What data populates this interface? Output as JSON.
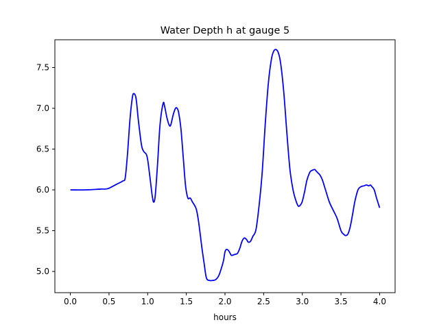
{
  "chart_data": {
    "type": "line",
    "title": "Water Depth h at gauge 5",
    "xlabel": "hours",
    "ylabel": "",
    "xlim": [
      -0.2,
      4.2
    ],
    "ylim": [
      4.74,
      7.84
    ],
    "xticks": [
      0.0,
      0.5,
      1.0,
      1.5,
      2.0,
      2.5,
      3.0,
      3.5,
      4.0
    ],
    "xtick_labels": [
      "0.0",
      "0.5",
      "1.0",
      "1.5",
      "2.0",
      "2.5",
      "3.0",
      "3.5",
      "4.0"
    ],
    "yticks": [
      5.0,
      5.5,
      6.0,
      6.5,
      7.0,
      7.5
    ],
    "ytick_labels": [
      "5.0",
      "5.5",
      "6.0",
      "6.5",
      "7.0",
      "7.5"
    ],
    "grid": false,
    "series": [
      {
        "color": "#0000ff",
        "x": [
          0.0,
          0.2,
          0.4,
          0.45,
          0.5,
          0.6,
          0.68,
          0.71,
          0.74,
          0.77,
          0.8,
          0.82,
          0.85,
          0.88,
          0.92,
          0.95,
          0.98,
          1.0,
          1.03,
          1.06,
          1.08,
          1.1,
          1.13,
          1.16,
          1.2,
          1.22,
          1.25,
          1.28,
          1.3,
          1.33,
          1.36,
          1.38,
          1.4,
          1.43,
          1.46,
          1.49,
          1.52,
          1.55,
          1.58,
          1.6,
          1.63,
          1.66,
          1.7,
          1.73,
          1.76,
          1.8,
          1.84,
          1.88,
          1.92,
          1.95,
          1.98,
          2.0,
          2.02,
          2.05,
          2.08,
          2.1,
          2.13,
          2.16,
          2.19,
          2.22,
          2.25,
          2.28,
          2.3,
          2.33,
          2.36,
          2.4,
          2.44,
          2.48,
          2.52,
          2.56,
          2.6,
          2.63,
          2.66,
          2.69,
          2.72,
          2.76,
          2.8,
          2.84,
          2.88,
          2.92,
          2.95,
          2.98,
          3.0,
          3.03,
          3.06,
          3.1,
          3.13,
          3.16,
          3.18,
          3.2,
          3.23,
          3.26,
          3.3,
          3.35,
          3.4,
          3.45,
          3.5,
          3.53,
          3.56,
          3.59,
          3.62,
          3.65,
          3.68,
          3.72,
          3.76,
          3.8,
          3.83,
          3.86,
          3.88,
          3.9,
          3.93,
          3.96,
          4.0
        ],
        "y": [
          6.0,
          6.0,
          6.01,
          6.01,
          6.02,
          6.07,
          6.11,
          6.15,
          6.45,
          6.85,
          7.12,
          7.18,
          7.12,
          6.85,
          6.55,
          6.47,
          6.44,
          6.37,
          6.15,
          5.92,
          5.85,
          5.95,
          6.35,
          6.8,
          7.06,
          7.02,
          6.88,
          6.79,
          6.8,
          6.92,
          7.0,
          7.0,
          6.95,
          6.75,
          6.4,
          6.05,
          5.9,
          5.9,
          5.85,
          5.82,
          5.76,
          5.6,
          5.3,
          5.1,
          4.92,
          4.89,
          4.89,
          4.9,
          4.95,
          5.03,
          5.13,
          5.24,
          5.27,
          5.25,
          5.2,
          5.2,
          5.21,
          5.22,
          5.28,
          5.37,
          5.41,
          5.39,
          5.36,
          5.37,
          5.43,
          5.51,
          5.8,
          6.2,
          6.8,
          7.3,
          7.6,
          7.7,
          7.72,
          7.68,
          7.55,
          7.2,
          6.7,
          6.25,
          6.0,
          5.86,
          5.8,
          5.82,
          5.86,
          5.98,
          6.12,
          6.22,
          6.24,
          6.25,
          6.23,
          6.21,
          6.18,
          6.12,
          6.0,
          5.85,
          5.75,
          5.65,
          5.5,
          5.46,
          5.44,
          5.46,
          5.55,
          5.7,
          5.86,
          6.0,
          6.04,
          6.05,
          6.06,
          6.05,
          6.06,
          6.04,
          6.0,
          5.9,
          5.78
        ]
      }
    ]
  }
}
